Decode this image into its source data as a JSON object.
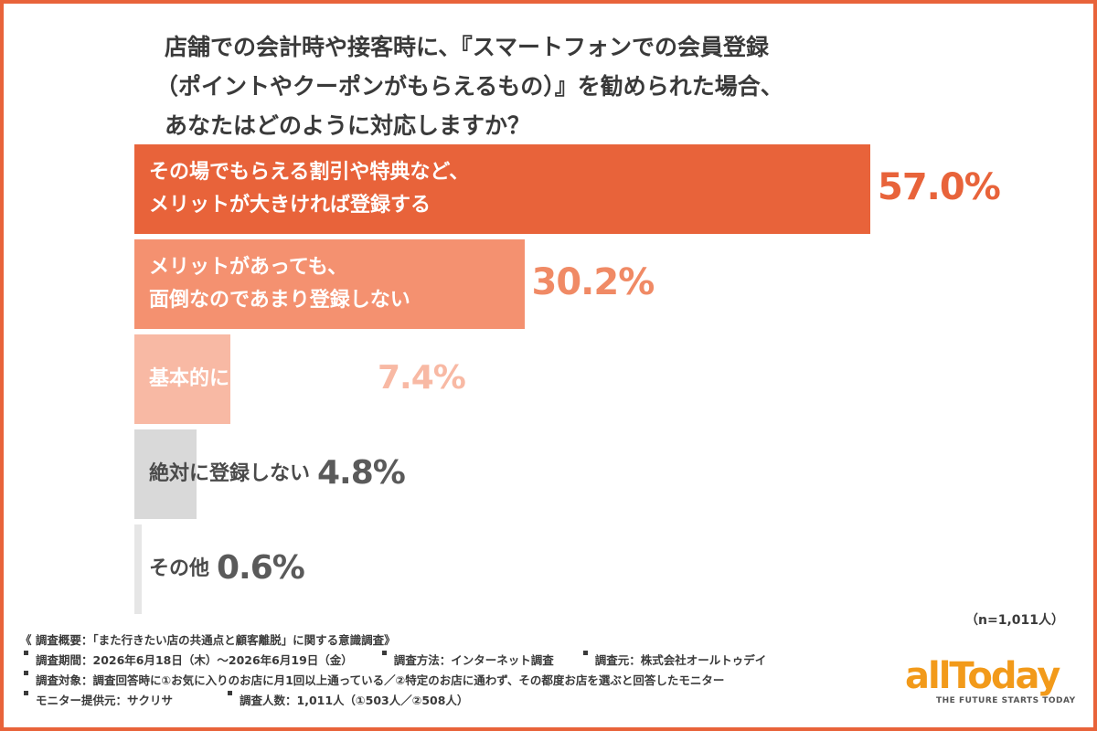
{
  "title_lines": [
    "店舗での会計時や接客時に、『スマートフォンでの会員登録",
    "（ポイントやクーポンがもらえるもの）』を勧められた場合、",
    "あなたはどのように対応しますか？"
  ],
  "chart_data": {
    "type": "bar",
    "orientation": "horizontal",
    "categories": [
      [
        "その場でもらえる割引や特典など、",
        "メリットが大きければ登録する"
      ],
      [
        "メリットがあっても、",
        "面倒なのであまり登録しない"
      ],
      [
        "基本的にいつも登録する"
      ],
      [
        "絶対に登録しない"
      ],
      [
        "その他"
      ]
    ],
    "values": [
      57.0,
      30.2,
      7.4,
      4.8,
      0.6
    ],
    "value_labels": [
      "57.0%",
      "30.2%",
      "7.4%",
      "4.8%",
      "0.6%"
    ],
    "unit": "%",
    "xlim": [
      0,
      100
    ],
    "colors": [
      "#e8633a",
      "#f49170",
      "#f8b9a4",
      "#d9d9d9",
      "#e6e6e6"
    ],
    "label_colors": [
      "#ffffff",
      "#ffffff",
      "#ffffff",
      "#4a4a4a",
      "#4a4a4a"
    ],
    "value_colors": [
      "#e8633a",
      "#f08a65",
      "#f8b9a4",
      "#5a5a5a",
      "#5a5a5a"
    ]
  },
  "sample_size": "（n=1,011人）",
  "notes": {
    "overview": "《 調査概要：「また行きたい店の共通点と顧客離脱」に関する意識調査》",
    "period": "調査期間：2026年6月18日（木）〜2026年6月19日（金）",
    "method": "調査方法：インターネット調査",
    "source": "調査元：株式会社オールトゥデイ",
    "target": "調査対象：調査回答時に①お気に入りのお店に月1回以上通っている／②特定のお店に通わず、その都度お店を選ぶと回答したモニター",
    "provider": "モニター提供元：サクリサ",
    "respondents": "調査人数：1,011人（①503人／②508人）"
  },
  "logo": {
    "name": "allToday",
    "tagline": "THE FUTURE STARTS TODAY",
    "color": "#f29a1a"
  }
}
